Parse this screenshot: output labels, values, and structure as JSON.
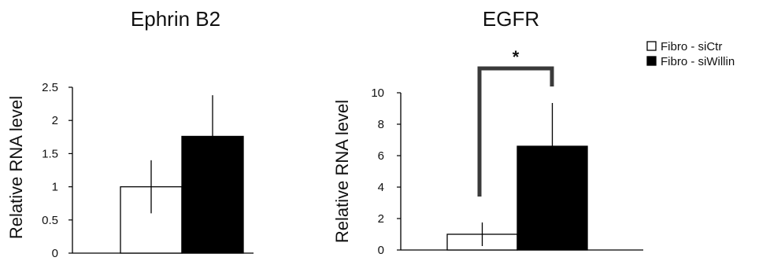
{
  "legend": {
    "position": "top-right",
    "items": [
      {
        "label": "Fibro - siCtr",
        "color": "#ffffff"
      },
      {
        "label": "Fibro - siWillin",
        "color": "#000000"
      }
    ]
  },
  "chart_data": [
    {
      "type": "bar",
      "title": "Ephrin B2",
      "ylabel": "Relative RNA level",
      "xlabel": "",
      "ylim": [
        0,
        2.5
      ],
      "yticks": [
        "0",
        "0.5",
        "1",
        "1.5",
        "2",
        "2.5"
      ],
      "ytick_values": [
        0,
        0.5,
        1,
        1.5,
        2,
        2.5
      ],
      "grid": false,
      "series": [
        {
          "name": "Fibro - siCtr",
          "value": 1.0,
          "error": 0.4,
          "color": "#ffffff"
        },
        {
          "name": "Fibro - siWillin",
          "value": 1.76,
          "error": 0.62,
          "color": "#000000"
        }
      ]
    },
    {
      "type": "bar",
      "title": "EGFR",
      "ylabel": "Relative RNA level",
      "xlabel": "",
      "ylim": [
        0,
        10
      ],
      "yticks": [
        "0",
        "2",
        "4",
        "6",
        "8",
        "10"
      ],
      "ytick_values": [
        0,
        2,
        4,
        6,
        8,
        10
      ],
      "grid": false,
      "series": [
        {
          "name": "Fibro - siCtr",
          "value": 1.0,
          "error": 0.75,
          "color": "#ffffff"
        },
        {
          "name": "Fibro - siWillin",
          "value": 6.6,
          "error": 2.75,
          "color": "#000000"
        }
      ],
      "significance": {
        "label": "*"
      }
    }
  ]
}
